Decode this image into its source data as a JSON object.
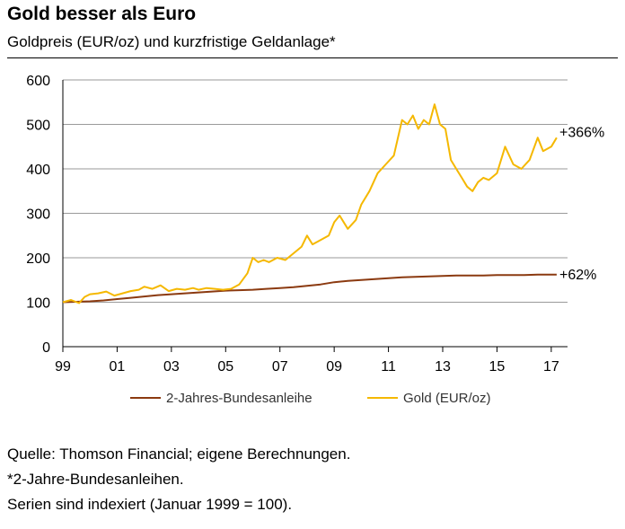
{
  "header": {
    "title": "Gold besser als Euro",
    "subtitle": "Goldpreis (EUR/oz) und kurzfristige Geldanlage*"
  },
  "chart_data": {
    "type": "line",
    "title": "Gold besser als Euro",
    "subtitle": "Goldpreis (EUR/oz) und kurzfristige Geldanlage*",
    "xlabel": "",
    "ylabel": "",
    "xlim": [
      1999,
      2017.6
    ],
    "ylim": [
      0,
      600
    ],
    "yticks": [
      0,
      100,
      200,
      300,
      400,
      500,
      600
    ],
    "xticks": [
      {
        "value": 1999,
        "label": "99"
      },
      {
        "value": 2001,
        "label": "01"
      },
      {
        "value": 2003,
        "label": "03"
      },
      {
        "value": 2005,
        "label": "05"
      },
      {
        "value": 2007,
        "label": "07"
      },
      {
        "value": 2009,
        "label": "09"
      },
      {
        "value": 2011,
        "label": "11"
      },
      {
        "value": 2013,
        "label": "13"
      },
      {
        "value": 2015,
        "label": "15"
      },
      {
        "value": 2017,
        "label": "17"
      }
    ],
    "grid": "horizontal",
    "legend_position": "bottom",
    "series": [
      {
        "name": "2-Jahres-Bundesanleihe",
        "color": "#8B3A10",
        "end_label": "+62%",
        "x": [
          1999.0,
          1999.5,
          2000.0,
          2000.5,
          2001.0,
          2001.5,
          2002.0,
          2002.5,
          2003.0,
          2003.5,
          2004.0,
          2004.5,
          2005.0,
          2005.5,
          2006.0,
          2006.5,
          2007.0,
          2007.5,
          2008.0,
          2008.5,
          2009.0,
          2009.5,
          2010.0,
          2010.5,
          2011.0,
          2011.5,
          2012.0,
          2012.5,
          2013.0,
          2013.5,
          2014.0,
          2014.5,
          2015.0,
          2015.5,
          2016.0,
          2016.5,
          2017.0,
          2017.2
        ],
        "values": [
          100,
          101,
          102,
          104,
          107,
          110,
          113,
          116,
          118,
          120,
          122,
          124,
          126,
          127,
          128,
          130,
          132,
          134,
          137,
          140,
          145,
          148,
          150,
          152,
          154,
          156,
          157,
          158,
          159,
          160,
          160,
          160,
          161,
          161,
          161,
          162,
          162,
          162
        ]
      },
      {
        "name": "Gold (EUR/oz)",
        "color": "#F5B800",
        "end_label": "+366%",
        "x": [
          1999.0,
          1999.3,
          1999.6,
          1999.8,
          2000.0,
          2000.3,
          2000.6,
          2000.9,
          2001.2,
          2001.5,
          2001.8,
          2002.0,
          2002.3,
          2002.6,
          2002.9,
          2003.2,
          2003.5,
          2003.8,
          2004.0,
          2004.3,
          2004.6,
          2004.9,
          2005.2,
          2005.5,
          2005.8,
          2006.0,
          2006.2,
          2006.4,
          2006.6,
          2006.9,
          2007.2,
          2007.5,
          2007.8,
          2008.0,
          2008.2,
          2008.5,
          2008.8,
          2009.0,
          2009.2,
          2009.5,
          2009.8,
          2010.0,
          2010.3,
          2010.6,
          2010.9,
          2011.2,
          2011.5,
          2011.7,
          2011.9,
          2012.1,
          2012.3,
          2012.5,
          2012.7,
          2012.9,
          2013.1,
          2013.3,
          2013.5,
          2013.7,
          2013.9,
          2014.1,
          2014.3,
          2014.5,
          2014.7,
          2015.0,
          2015.3,
          2015.6,
          2015.9,
          2016.2,
          2016.5,
          2016.7,
          2017.0,
          2017.2
        ],
        "values": [
          100,
          105,
          98,
          112,
          118,
          120,
          124,
          115,
          120,
          125,
          128,
          135,
          130,
          138,
          125,
          130,
          128,
          132,
          128,
          132,
          130,
          128,
          130,
          140,
          165,
          200,
          190,
          195,
          190,
          200,
          195,
          210,
          225,
          250,
          230,
          240,
          250,
          280,
          295,
          265,
          285,
          320,
          350,
          390,
          410,
          430,
          510,
          500,
          520,
          490,
          510,
          500,
          545,
          500,
          490,
          420,
          400,
          380,
          360,
          350,
          370,
          380,
          375,
          390,
          450,
          410,
          400,
          420,
          470,
          440,
          450,
          470
        ]
      }
    ]
  },
  "footer": {
    "line1": "Quelle: Thomson Financial; eigene Berechnungen.",
    "line2": "*2-Jahre-Bundesanleihen.",
    "line3": "Serien sind indexiert (Januar 1999 = 100)."
  }
}
